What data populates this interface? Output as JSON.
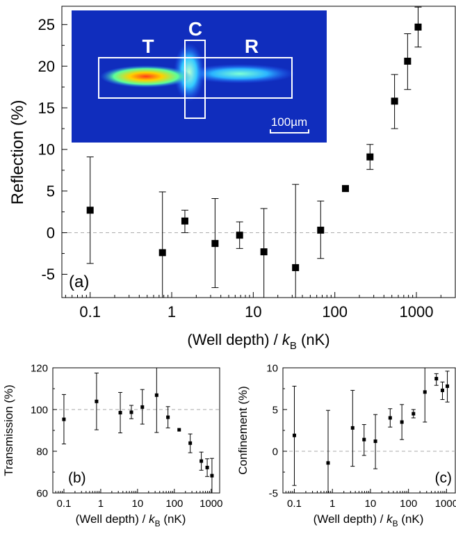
{
  "chart_data": [
    {
      "id": "a",
      "type": "scatter",
      "panel_label": "(a)",
      "xlabel_prefix": "(Well depth) / ",
      "xlabel_k": "k",
      "xlabel_sub": "B",
      "xlabel_suffix": " (nK)",
      "ylabel": "Reflection (%)",
      "xscale": "log",
      "xlim": [
        0.045,
        3000
      ],
      "ylim": [
        -7.8,
        27.2
      ],
      "xticks": [
        {
          "v": 0.1,
          "label": "0.1"
        },
        {
          "v": 1,
          "label": "1"
        },
        {
          "v": 10,
          "label": "10"
        },
        {
          "v": 100,
          "label": "100"
        },
        {
          "v": 1000,
          "label": "1000"
        }
      ],
      "yticks": [
        {
          "v": -5,
          "label": "-5"
        },
        {
          "v": 0,
          "label": "0"
        },
        {
          "v": 5,
          "label": "5"
        },
        {
          "v": 10,
          "label": "10"
        },
        {
          "v": 15,
          "label": "15"
        },
        {
          "v": 20,
          "label": "20"
        },
        {
          "v": 25,
          "label": "25"
        }
      ],
      "reference_line": 0,
      "points": [
        {
          "x": 0.1,
          "y": 2.7,
          "lo": -3.7,
          "hi": 9.1
        },
        {
          "x": 0.77,
          "y": -2.4,
          "lo": -7.8,
          "hi": 4.9
        },
        {
          "x": 1.45,
          "y": 1.4,
          "lo": 0.0,
          "hi": 2.7
        },
        {
          "x": 3.4,
          "y": -1.3,
          "lo": -6.6,
          "hi": 4.1
        },
        {
          "x": 6.8,
          "y": -0.3,
          "lo": -1.9,
          "hi": 1.3
        },
        {
          "x": 13.5,
          "y": -2.3,
          "lo": -7.8,
          "hi": 2.9
        },
        {
          "x": 33,
          "y": -4.2,
          "lo": -7.8,
          "hi": 5.8
        },
        {
          "x": 67,
          "y": 0.3,
          "lo": -3.1,
          "hi": 3.8
        },
        {
          "x": 135,
          "y": 5.3,
          "lo": 5.3,
          "hi": 5.3
        },
        {
          "x": 270,
          "y": 9.1,
          "lo": 7.6,
          "hi": 10.6
        },
        {
          "x": 540,
          "y": 15.8,
          "lo": 12.5,
          "hi": 19.0
        },
        {
          "x": 780,
          "y": 20.6,
          "lo": 17.2,
          "hi": 23.9
        },
        {
          "x": 1050,
          "y": 24.7,
          "lo": 22.3,
          "hi": 27.1
        }
      ],
      "inset": {
        "labels": [
          "T",
          "C",
          "R"
        ],
        "scale_label": "100µm"
      }
    },
    {
      "id": "b",
      "type": "scatter",
      "panel_label": "(b)",
      "xlabel_prefix": "(Well depth) / ",
      "xlabel_k": "k",
      "xlabel_sub": "B",
      "xlabel_suffix": " (nK)",
      "ylabel": "Transmission (%)",
      "xscale": "log",
      "xlim": [
        0.05,
        1700
      ],
      "ylim": [
        60,
        120
      ],
      "xticks": [
        {
          "v": 0.1,
          "label": "0.1"
        },
        {
          "v": 1,
          "label": "1"
        },
        {
          "v": 10,
          "label": "10"
        },
        {
          "v": 100,
          "label": "100"
        },
        {
          "v": 1000,
          "label": "1000"
        }
      ],
      "yticks": [
        {
          "v": 60,
          "label": "60"
        },
        {
          "v": 80,
          "label": "80"
        },
        {
          "v": 100,
          "label": "100"
        },
        {
          "v": 120,
          "label": "120"
        }
      ],
      "reference_line": 100,
      "points": [
        {
          "x": 0.1,
          "y": 95.3,
          "lo": 83.5,
          "hi": 107.2
        },
        {
          "x": 0.77,
          "y": 103.9,
          "lo": 90.3,
          "hi": 117.5
        },
        {
          "x": 3.4,
          "y": 98.5,
          "lo": 88.8,
          "hi": 108.2
        },
        {
          "x": 6.8,
          "y": 98.7,
          "lo": 95.6,
          "hi": 102.0
        },
        {
          "x": 13.5,
          "y": 101.2,
          "lo": 93.0,
          "hi": 109.6
        },
        {
          "x": 33,
          "y": 106.9,
          "lo": 89.0,
          "hi": 120.0
        },
        {
          "x": 67,
          "y": 96.3,
          "lo": 91.2,
          "hi": 101.4
        },
        {
          "x": 135,
          "y": 90.3,
          "lo": 90.3,
          "hi": 90.3
        },
        {
          "x": 270,
          "y": 83.9,
          "lo": 79.3,
          "hi": 88.3
        },
        {
          "x": 540,
          "y": 75.3,
          "lo": 70.9,
          "hi": 79.6
        },
        {
          "x": 780,
          "y": 72.2,
          "lo": 67.9,
          "hi": 76.4
        },
        {
          "x": 1050,
          "y": 68.3,
          "lo": 60.0,
          "hi": 76.6
        }
      ]
    },
    {
      "id": "c",
      "type": "scatter",
      "panel_label": "(c)",
      "xlabel_prefix": "(Well depth) / ",
      "xlabel_k": "k",
      "xlabel_sub": "B",
      "xlabel_suffix": " (nK)",
      "ylabel": "Confinement (%)",
      "xscale": "log",
      "xlim": [
        0.05,
        1700
      ],
      "ylim": [
        -5,
        10
      ],
      "xticks": [
        {
          "v": 0.1,
          "label": "0.1"
        },
        {
          "v": 1,
          "label": "1"
        },
        {
          "v": 10,
          "label": "10"
        },
        {
          "v": 100,
          "label": "100"
        },
        {
          "v": 1000,
          "label": "1000"
        }
      ],
      "yticks": [
        {
          "v": -5,
          "label": "-5"
        },
        {
          "v": 0,
          "label": "0"
        },
        {
          "v": 5,
          "label": "5"
        },
        {
          "v": 10,
          "label": "10"
        }
      ],
      "reference_line": 0,
      "points": [
        {
          "x": 0.1,
          "y": 1.9,
          "lo": -4.1,
          "hi": 7.8
        },
        {
          "x": 0.77,
          "y": -1.4,
          "lo": -5.0,
          "hi": 4.9
        },
        {
          "x": 3.4,
          "y": 2.8,
          "lo": -1.8,
          "hi": 7.3
        },
        {
          "x": 6.8,
          "y": 1.4,
          "lo": -0.5,
          "hi": 3.2
        },
        {
          "x": 13.5,
          "y": 1.2,
          "lo": -2.1,
          "hi": 4.4
        },
        {
          "x": 33,
          "y": 4.0,
          "lo": 2.9,
          "hi": 5.1
        },
        {
          "x": 67,
          "y": 3.5,
          "lo": 1.4,
          "hi": 5.6
        },
        {
          "x": 135,
          "y": 4.5,
          "lo": 4.0,
          "hi": 5.0
        },
        {
          "x": 270,
          "y": 7.1,
          "lo": 3.5,
          "hi": 10.0
        },
        {
          "x": 540,
          "y": 8.7,
          "lo": 7.9,
          "hi": 9.3
        },
        {
          "x": 780,
          "y": 7.3,
          "lo": 6.2,
          "hi": 8.3
        },
        {
          "x": 1050,
          "y": 7.8,
          "lo": 5.9,
          "hi": 9.6
        }
      ]
    }
  ]
}
